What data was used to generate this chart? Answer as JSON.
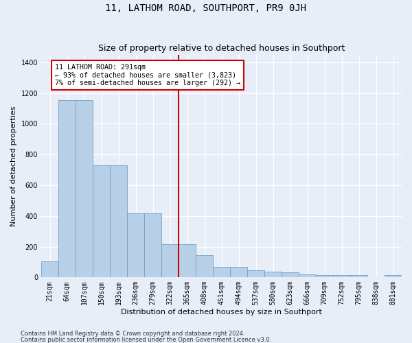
{
  "title": "11, LATHOM ROAD, SOUTHPORT, PR9 0JH",
  "subtitle": "Size of property relative to detached houses in Southport",
  "xlabel": "Distribution of detached houses by size in Southport",
  "ylabel": "Number of detached properties",
  "categories": [
    "21sqm",
    "64sqm",
    "107sqm",
    "150sqm",
    "193sqm",
    "236sqm",
    "279sqm",
    "322sqm",
    "365sqm",
    "408sqm",
    "451sqm",
    "494sqm",
    "537sqm",
    "580sqm",
    "623sqm",
    "666sqm",
    "709sqm",
    "752sqm",
    "795sqm",
    "838sqm",
    "881sqm"
  ],
  "values": [
    105,
    1155,
    1155,
    730,
    730,
    415,
    415,
    218,
    218,
    145,
    70,
    68,
    47,
    35,
    33,
    18,
    15,
    14,
    14,
    2,
    15
  ],
  "bar_color": "#b8cfe8",
  "bar_edge_color": "#6fa0c8",
  "vline_x_index": 7.5,
  "vline_color": "#cc0000",
  "annotation_text": "11 LATHOM ROAD: 291sqm\n← 93% of detached houses are smaller (3,823)\n7% of semi-detached houses are larger (292) →",
  "annotation_box_color": "#cc0000",
  "ylim": [
    0,
    1450
  ],
  "yticks": [
    0,
    200,
    400,
    600,
    800,
    1000,
    1200,
    1400
  ],
  "fig_bg_color": "#e8eef8",
  "plot_bg_color": "#e8eef8",
  "footer1": "Contains HM Land Registry data © Crown copyright and database right 2024.",
  "footer2": "Contains public sector information licensed under the Open Government Licence v3.0.",
  "title_fontsize": 10,
  "subtitle_fontsize": 9,
  "ylabel_fontsize": 8,
  "xlabel_fontsize": 8,
  "tick_fontsize": 7,
  "footer_fontsize": 6
}
